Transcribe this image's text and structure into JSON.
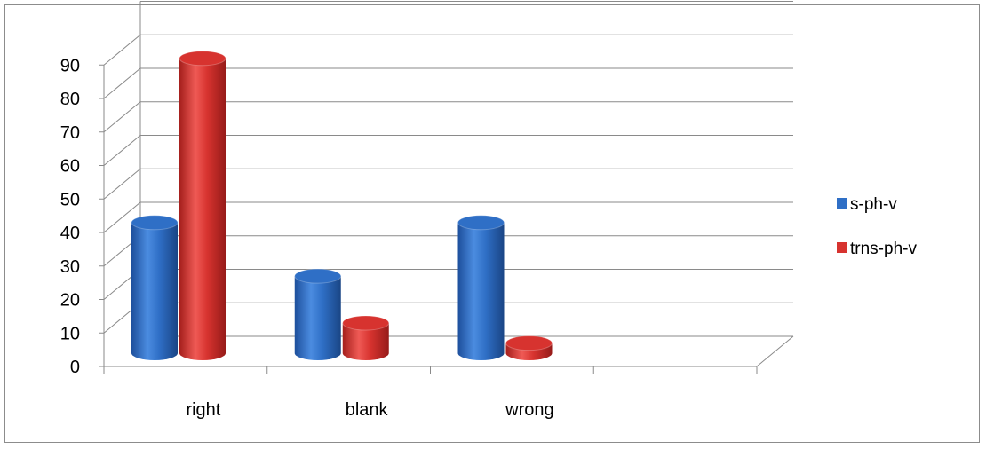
{
  "chart_data": {
    "type": "bar",
    "style": "3d-cylinder",
    "title": "",
    "xlabel": "",
    "ylabel": "",
    "categories": [
      "right",
      "blank",
      "wrong"
    ],
    "series": [
      {
        "name": "s-ph-v",
        "color": "#2f6fc6",
        "values": [
          39,
          23,
          39
        ]
      },
      {
        "name": "trns-ph-v",
        "color": "#d7332f",
        "values": [
          88,
          9,
          3
        ]
      }
    ],
    "ylim": [
      0,
      90
    ],
    "yticks": [
      0,
      10,
      20,
      30,
      40,
      50,
      60,
      70,
      80,
      90
    ],
    "grid": true,
    "legend_position": "right"
  }
}
